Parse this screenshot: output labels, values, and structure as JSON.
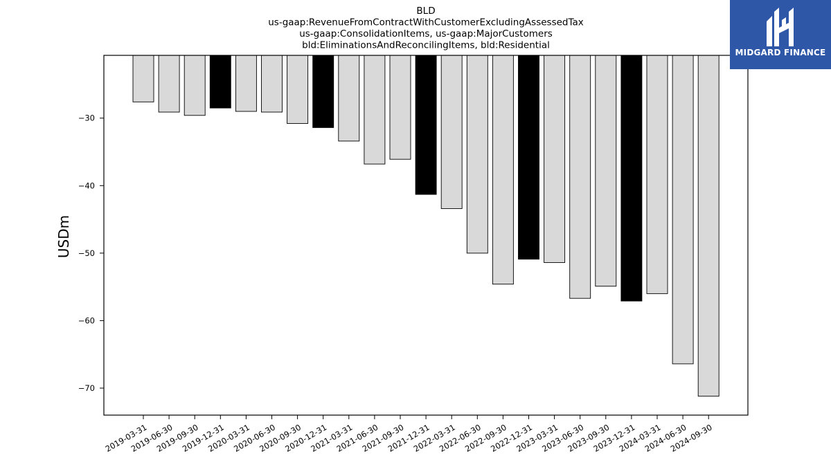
{
  "logo": {
    "text": "MIDGARD FINANCE",
    "color": "#2f57a8"
  },
  "chart_data": {
    "type": "bar",
    "title_lines": [
      "BLD",
      "us-gaap:RevenueFromContractWithCustomerExcludingAssessedTax",
      "us-gaap:ConsolidationItems, us-gaap:MajorCustomers",
      "bld:EliminationsAndReconcilingItems, bld:Residential"
    ],
    "ylabel": "USDm",
    "xlabel": "",
    "ylim": [
      -74,
      -20.7
    ],
    "yticks": [
      -30,
      -40,
      -50,
      -60,
      -70
    ],
    "grid": false,
    "categories": [
      "2019-03-31",
      "2019-06-30",
      "2019-09-30",
      "2019-12-31",
      "2020-03-31",
      "2020-06-30",
      "2020-09-30",
      "2020-12-31",
      "2021-03-31",
      "2021-06-30",
      "2021-09-30",
      "2021-12-31",
      "2022-03-31",
      "2022-06-30",
      "2022-09-30",
      "2022-12-31",
      "2023-03-31",
      "2023-06-30",
      "2023-09-30",
      "2023-12-31",
      "2024-03-31",
      "2024-06-30",
      "2024-09-30"
    ],
    "values": [
      -27.6,
      -29.1,
      -29.6,
      -28.5,
      -29.0,
      -29.1,
      -30.8,
      -31.4,
      -33.4,
      -36.8,
      -36.1,
      -41.3,
      -43.4,
      -50.0,
      -54.6,
      -50.9,
      -51.4,
      -56.7,
      -54.9,
      -57.1,
      -56.0,
      -66.4,
      -71.2
    ],
    "highlight": [
      false,
      false,
      false,
      true,
      false,
      false,
      false,
      true,
      false,
      false,
      false,
      true,
      false,
      false,
      false,
      true,
      false,
      false,
      false,
      true,
      false,
      false,
      false
    ],
    "colors": {
      "bar": "#d9d9d9",
      "highlight": "#000000",
      "edge": "#000000"
    }
  }
}
